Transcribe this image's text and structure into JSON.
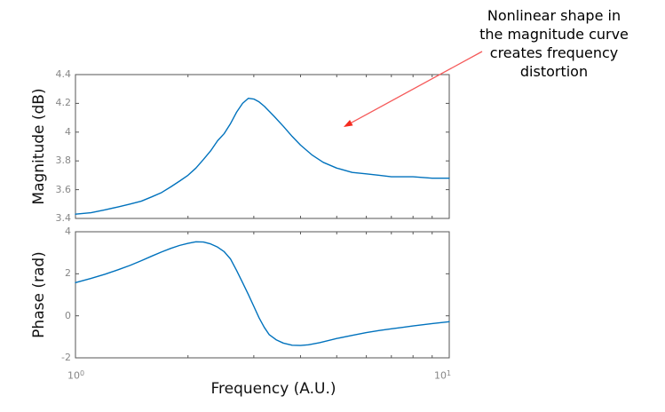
{
  "figure": {
    "background": "#ffffff"
  },
  "axis_style": {
    "axis_color": "#565656",
    "tick_label_color": "#878787",
    "label_color": "#111111"
  },
  "annotation": {
    "lines": [
      "Nonlinear shape in",
      "the magnitude curve",
      "creates frequency",
      "distortion"
    ],
    "text_color": "#000000",
    "arrow_line_color": "#f55a5a",
    "arrow_head_color": "#f52a1e"
  },
  "chart_data": [
    {
      "type": "line",
      "name": "magnitude-response",
      "title": "",
      "xlabel": "",
      "ylabel": "Magnitude (dB)",
      "xscale": "log",
      "xlim": [
        1,
        10
      ],
      "ylim": [
        3.4,
        4.4
      ],
      "yticks": [
        3.4,
        3.6,
        3.8,
        4.0,
        4.2,
        4.4
      ],
      "ytick_labels": [
        "3.4",
        "3.6",
        "3.8",
        "4",
        "4.2",
        "4.4"
      ],
      "xticks": [
        1,
        10
      ],
      "minor_xticks": [
        2,
        3,
        4,
        5,
        6,
        7,
        8,
        9
      ],
      "grid": false,
      "legend": "none",
      "line_color": "#0072BD",
      "x": [
        1.0,
        1.1,
        1.2,
        1.3,
        1.4,
        1.5,
        1.6,
        1.7,
        1.8,
        1.9,
        2.0,
        2.1,
        2.2,
        2.3,
        2.4,
        2.5,
        2.6,
        2.7,
        2.8,
        2.9,
        3.0,
        3.1,
        3.2,
        3.4,
        3.6,
        3.8,
        4.0,
        4.3,
        4.6,
        5.0,
        5.5,
        6.0,
        6.5,
        7.0,
        8.0,
        9.0,
        10.0
      ],
      "y": [
        3.43,
        3.44,
        3.46,
        3.48,
        3.5,
        3.52,
        3.55,
        3.58,
        3.62,
        3.66,
        3.7,
        3.75,
        3.81,
        3.87,
        3.94,
        3.99,
        4.06,
        4.14,
        4.2,
        4.235,
        4.23,
        4.21,
        4.18,
        4.11,
        4.04,
        3.97,
        3.91,
        3.84,
        3.79,
        3.75,
        3.72,
        3.71,
        3.7,
        3.69,
        3.69,
        3.68,
        3.68
      ]
    },
    {
      "type": "line",
      "name": "phase-response",
      "title": "",
      "xlabel": "Frequency (A.U.)",
      "ylabel": "Phase (rad)",
      "xscale": "log",
      "xlim": [
        1,
        10
      ],
      "ylim": [
        -2,
        4
      ],
      "yticks": [
        -2,
        0,
        2,
        4
      ],
      "ytick_labels": [
        "-2",
        "0",
        "2",
        "4"
      ],
      "xticks": [
        1,
        10
      ],
      "xtick_labels": [
        {
          "base": "10",
          "exp": "0"
        },
        {
          "base": "10",
          "exp": "1"
        }
      ],
      "minor_xticks": [
        2,
        3,
        4,
        5,
        6,
        7,
        8,
        9
      ],
      "grid": false,
      "legend": "none",
      "line_color": "#0072BD",
      "x": [
        1.0,
        1.1,
        1.2,
        1.3,
        1.4,
        1.5,
        1.6,
        1.7,
        1.8,
        1.9,
        2.0,
        2.1,
        2.2,
        2.3,
        2.4,
        2.5,
        2.6,
        2.7,
        2.8,
        2.9,
        3.0,
        3.1,
        3.2,
        3.3,
        3.45,
        3.6,
        3.8,
        4.0,
        4.2,
        4.5,
        5.0,
        5.5,
        6.0,
        6.5,
        7.0,
        7.5,
        8.0,
        9.0,
        10.0
      ],
      "y": [
        1.58,
        1.78,
        1.98,
        2.19,
        2.4,
        2.62,
        2.84,
        3.04,
        3.21,
        3.35,
        3.45,
        3.52,
        3.51,
        3.42,
        3.27,
        3.05,
        2.7,
        2.15,
        1.58,
        1.02,
        0.45,
        -0.1,
        -0.55,
        -0.9,
        -1.15,
        -1.3,
        -1.4,
        -1.41,
        -1.38,
        -1.28,
        -1.08,
        -0.93,
        -0.8,
        -0.7,
        -0.62,
        -0.55,
        -0.48,
        -0.37,
        -0.28
      ]
    }
  ]
}
